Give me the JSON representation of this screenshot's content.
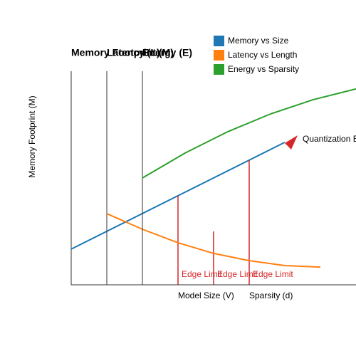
{
  "chart_data": [
    {
      "type": "line",
      "title": "Memory Footprint (M)",
      "x_label": "Model Size (V)",
      "y_label": "Memory Footprint (M)",
      "xlim": [
        0,
        10
      ],
      "ylim": [
        0,
        10
      ],
      "series": [
        {
          "name": "Memory vs Size",
          "color": "#1f77b4",
          "x": [
            0,
            7.5
          ],
          "values": [
            1.67,
            6.67
          ]
        }
      ],
      "annotations": [
        {
          "text": "Quantization Effect",
          "x": 8.125,
          "y": 6.8,
          "color": "#d62728"
        },
        {
          "text": "Edge Limit",
          "x": 3.75,
          "y": 4.17,
          "color": "#d62728"
        },
        {
          "text": "Edge Limit",
          "x": 5,
          "y": 2.5,
          "color": "#d62728"
        },
        {
          "text": "Edge Limit",
          "x": 6.25,
          "y": 5.83,
          "color": "#d62728"
        }
      ]
    },
    {
      "type": "line",
      "title": "Latency (L)",
      "xlim": [
        0,
        10
      ],
      "ylim": [
        0,
        10
      ],
      "series": [
        {
          "name": "Latency vs Length",
          "color": "#ff7f0e",
          "x": [
            0,
            1.67,
            3.33,
            5,
            6.67,
            8.33,
            10
          ],
          "values": [
            3.33,
            2.6,
            1.97,
            1.47,
            1.13,
            0.9,
            0.83
          ]
        }
      ]
    },
    {
      "type": "line",
      "title": "Energy (E)",
      "x_label": "Sparsity (d)",
      "xlim": [
        0,
        10
      ],
      "ylim": [
        0,
        10
      ],
      "series": [
        {
          "name": "Energy vs Sparsity",
          "color": "#2ca02c",
          "x": [
            0,
            2,
            4,
            6,
            8,
            10
          ],
          "values": [
            5,
            6.17,
            7.17,
            8,
            8.67,
            9.17
          ]
        }
      ]
    }
  ]
}
